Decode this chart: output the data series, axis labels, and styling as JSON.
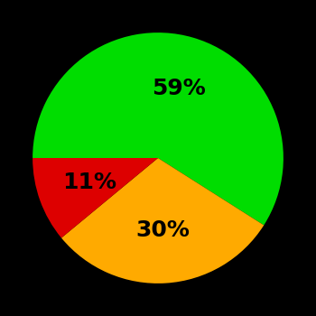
{
  "slices": [
    59,
    30,
    11
  ],
  "colors": [
    "#00dd00",
    "#ffaa00",
    "#dd0000"
  ],
  "labels": [
    "59%",
    "30%",
    "11%"
  ],
  "background_color": "#000000",
  "text_color": "#000000",
  "startangle": 180,
  "figsize": [
    3.5,
    3.5
  ],
  "dpi": 100,
  "font_size": 18,
  "font_weight": "bold",
  "label_r": 0.58
}
